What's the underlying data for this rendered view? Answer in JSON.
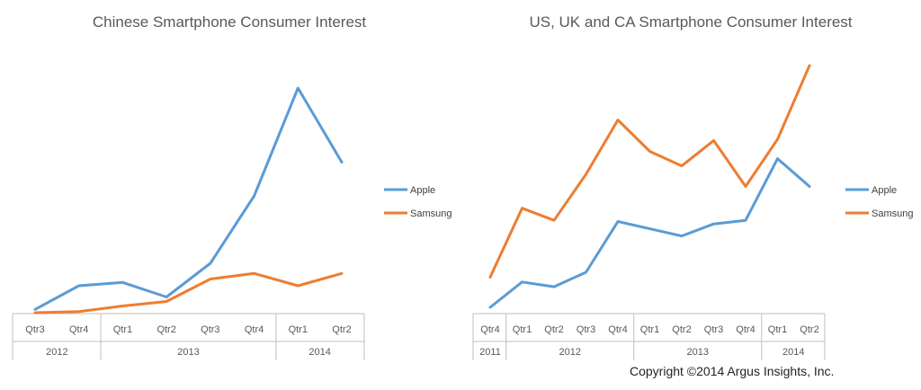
{
  "chart_data": [
    {
      "type": "line",
      "title": "Chinese Smartphone Consumer Interest",
      "categories": [
        "Qtr3",
        "Qtr4",
        "Qtr1",
        "Qtr2",
        "Qtr3",
        "Qtr4",
        "Qtr1",
        "Qtr2"
      ],
      "year_groups": [
        {
          "label": "2012",
          "count": 2
        },
        {
          "label": "2013",
          "count": 4
        },
        {
          "label": "2014",
          "count": 2
        }
      ],
      "ylim": [
        0,
        100
      ],
      "grid": false,
      "legend_position": "right",
      "series": [
        {
          "name": "Apple",
          "color": "#5b9bd5",
          "values": [
            1.5,
            12,
            13.5,
            7,
            22,
            52,
            100,
            67
          ]
        },
        {
          "name": "Samsung",
          "color": "#ed7d31",
          "values": [
            0,
            0.5,
            3,
            5,
            15,
            17.5,
            12,
            17.5
          ]
        }
      ]
    },
    {
      "type": "line",
      "title": "US, UK and CA Smartphone Consumer Interest",
      "categories": [
        "Qtr4",
        "Qtr1",
        "Qtr2",
        "Qtr3",
        "Qtr4",
        "Qtr1",
        "Qtr2",
        "Qtr3",
        "Qtr4",
        "Qtr1",
        "Qtr2"
      ],
      "year_groups": [
        {
          "label": "2011",
          "count": 1
        },
        {
          "label": "2012",
          "count": 4
        },
        {
          "label": "2013",
          "count": 4
        },
        {
          "label": "2014",
          "count": 2
        }
      ],
      "ylim": [
        0,
        100
      ],
      "grid": false,
      "legend_position": "right",
      "series": [
        {
          "name": "Apple",
          "color": "#5b9bd5",
          "values": [
            0,
            10.5,
            8.5,
            14.5,
            35.5,
            32.5,
            29.5,
            34.5,
            36,
            61.5,
            50
          ]
        },
        {
          "name": "Samsung",
          "color": "#ed7d31",
          "values": [
            12.5,
            41,
            36,
            55,
            77.5,
            64.5,
            58.5,
            69,
            50,
            69.5,
            100
          ]
        }
      ]
    }
  ],
  "copyright": "Copyright ©2014 Argus Insights, Inc."
}
